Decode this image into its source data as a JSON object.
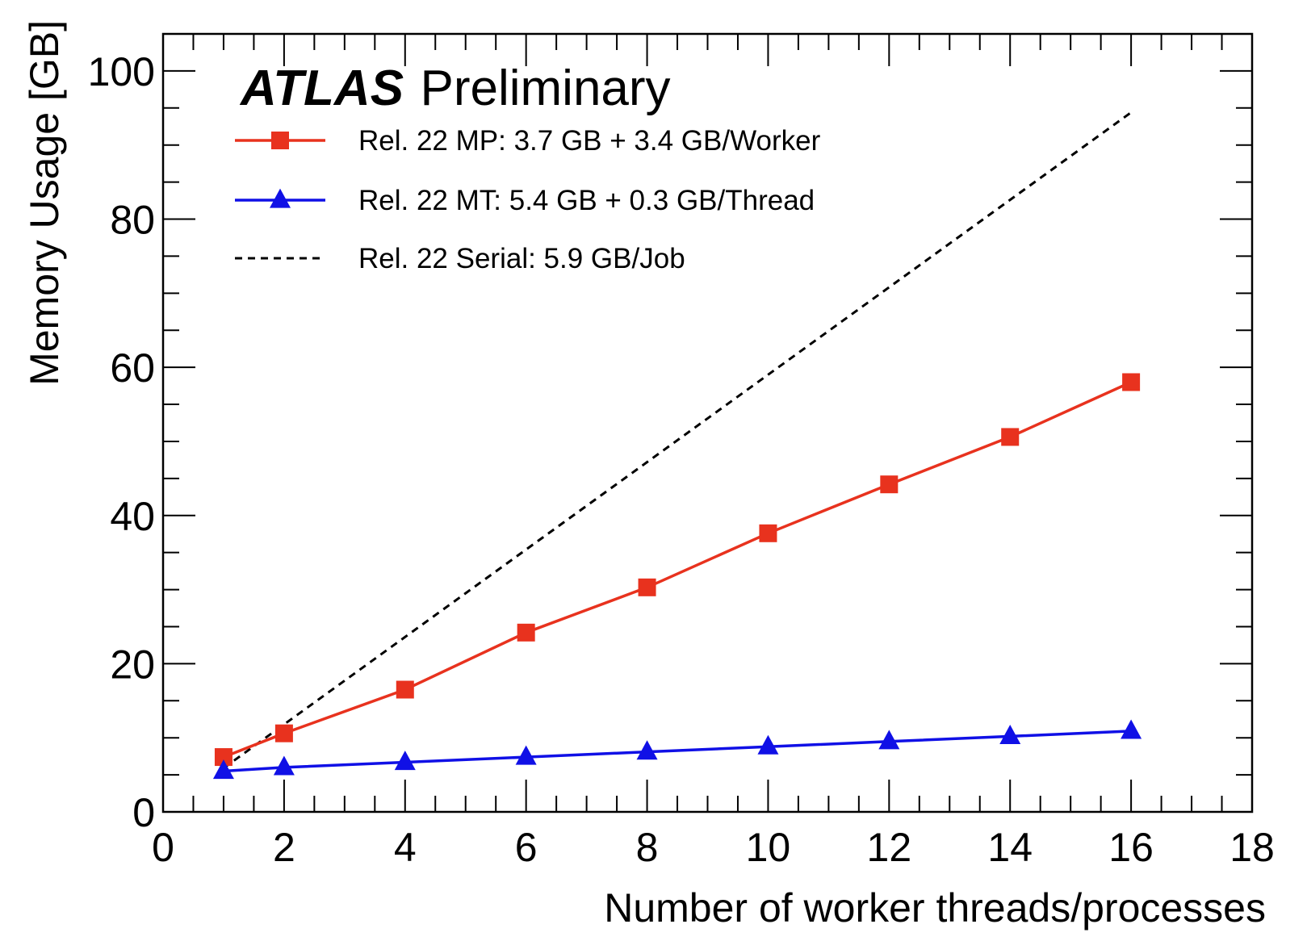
{
  "chart_data": {
    "type": "line",
    "xlabel": "Number of worker threads/processes",
    "ylabel": "Memory Usage [GB]",
    "xlim": [
      0,
      18
    ],
    "ylim": [
      0,
      105
    ],
    "xticks": [
      0,
      2,
      4,
      6,
      8,
      10,
      12,
      14,
      16,
      18
    ],
    "yticks": [
      0,
      20,
      40,
      60,
      80,
      100
    ],
    "x_tick_labels": [
      "0",
      "2",
      "4",
      "6",
      "8",
      "10",
      "12",
      "14",
      "16",
      "18"
    ],
    "y_tick_labels": [
      "0",
      "20",
      "40",
      "60",
      "80",
      "100"
    ],
    "x_minor_step": 0.5,
    "y_minor_step": 5,
    "grid": false,
    "legend_position": "top-left",
    "annotation": {
      "experiment": "ATLAS",
      "status": "Preliminary"
    },
    "series": [
      {
        "name": "Rel. 22 MP: 3.7 GB + 3.4 GB/Worker",
        "color": "#e8321e",
        "marker": "square",
        "line_style": "solid",
        "x": [
          1,
          2,
          4,
          6,
          8,
          10,
          12,
          14,
          16
        ],
        "y": [
          7.4,
          10.6,
          16.5,
          24.2,
          30.3,
          37.6,
          44.2,
          50.6,
          58.0
        ]
      },
      {
        "name": "Rel. 22 MT: 5.4 GB + 0.3 GB/Thread",
        "color": "#1010e6",
        "marker": "triangle-up",
        "line_style": "solid",
        "x": [
          1,
          2,
          4,
          6,
          8,
          10,
          12,
          14,
          16
        ],
        "y": [
          5.5,
          6.0,
          6.7,
          7.4,
          8.1,
          8.8,
          9.5,
          10.2,
          10.9
        ]
      },
      {
        "name": "Rel. 22 Serial: 5.9 GB/Job",
        "color": "#000000",
        "marker": "none",
        "line_style": "dashed",
        "x": [
          1,
          16
        ],
        "y": [
          5.9,
          94.4
        ]
      }
    ]
  }
}
